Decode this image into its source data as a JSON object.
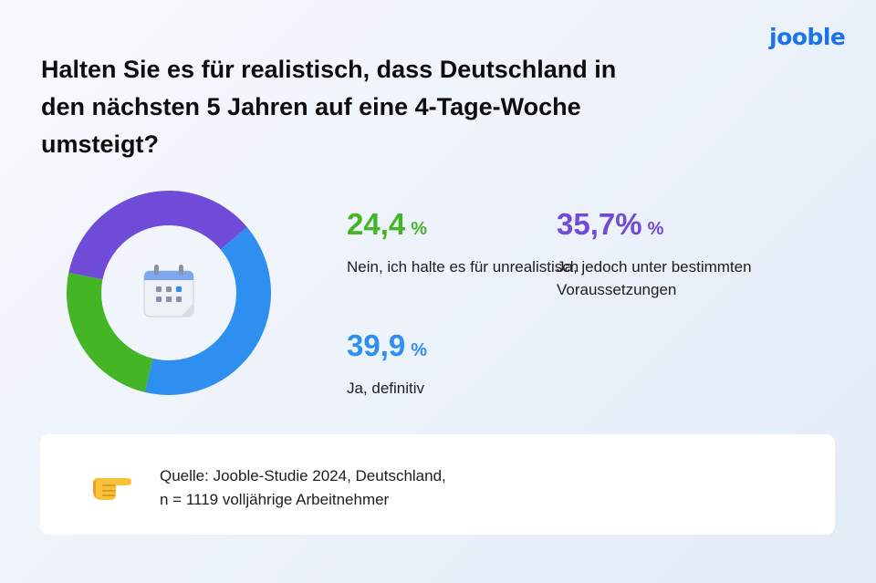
{
  "brand": {
    "logo": "jooble"
  },
  "title": "Halten Sie es für realistisch, dass Deutschland in den nächsten 5 Jahren auf eine 4-Tage-Woche umsteigt?",
  "stats": [
    {
      "value": "24,4",
      "unit": "%",
      "label": "Nein, ich halte es für unrealistisch",
      "color": "#44b626"
    },
    {
      "value": "35,7%",
      "unit": "%",
      "label": "Ja, jedoch unter bestimmten Voraussetzungen",
      "color": "#6f4bd8"
    },
    {
      "value": "39,9",
      "unit": "%",
      "label": "Ja, definitiv",
      "color": "#2f8ff0"
    }
  ],
  "source": {
    "line1": "Quelle: Jooble-Studie 2024, Deutschland,",
    "line2": "n = 1119 volljährige Arbeitnehmer"
  },
  "chart_data": {
    "type": "pie",
    "variant": "donut",
    "title": "Halten Sie es für realistisch, dass Deutschland in den nächsten 5 Jahren auf eine 4-Tage-Woche umsteigt?",
    "categories": [
      "Ja, definitiv",
      "Nein, ich halte es für unrealistisch",
      "Ja, jedoch unter bestimmten Voraussetzungen"
    ],
    "values": [
      39.9,
      24.4,
      35.7
    ],
    "colors": [
      "#2f8ff0",
      "#44b626",
      "#6f4bd8"
    ],
    "unit": "%",
    "center_icon": "calendar-icon"
  }
}
